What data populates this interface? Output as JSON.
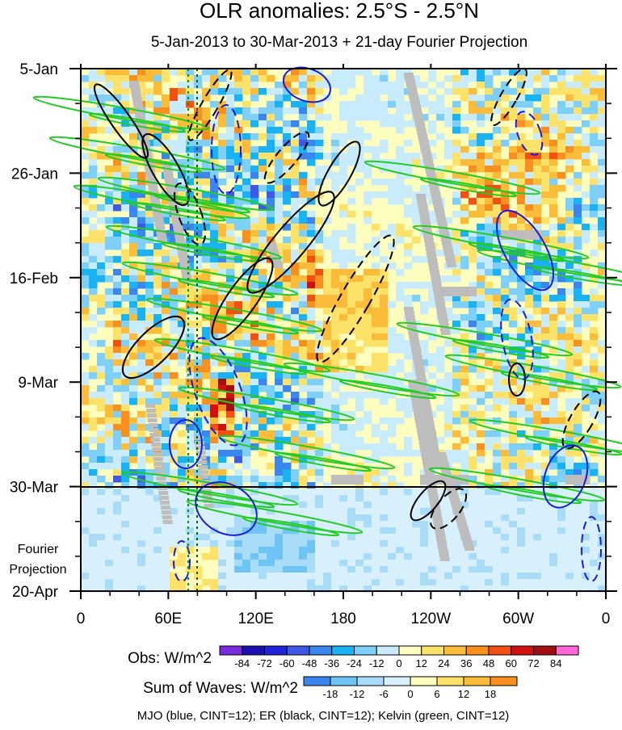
{
  "chart_data": {
    "type": "heatmap",
    "title": "OLR anomalies: 2.5°S - 2.5°N",
    "subtitle": "5-Jan-2013 to 30-Mar-2013 + 21-day Fourier Projection",
    "x_tick_labels": [
      "0",
      "60E",
      "120E",
      "180",
      "120W",
      "60W",
      "0"
    ],
    "x_range": [
      0,
      360
    ],
    "y_tick_labels": [
      "5-Jan",
      "26-Jan",
      "16-Feb",
      "9-Mar",
      "30-Mar",
      "20-Apr"
    ],
    "y_range": [
      "5-Jan-2013",
      "20-Apr-2013"
    ],
    "observation_end": "30-Mar",
    "fourier_label": [
      "Fourier",
      "Projection"
    ],
    "obs_colorbar": {
      "label": "Obs: W/m^2",
      "levels": [
        -84,
        -72,
        -60,
        -48,
        -36,
        -24,
        -12,
        0,
        12,
        24,
        36,
        48,
        60,
        72,
        84
      ],
      "colors": [
        "#7a2be0",
        "#1a0fb0",
        "#1f24d8",
        "#3f59e6",
        "#3b86ee",
        "#19b2f2",
        "#7fd0f8",
        "#c8ecfb",
        "#fefebe",
        "#fde26a",
        "#fbbd39",
        "#f98f1e",
        "#f24f12",
        "#d21010",
        "#a01010",
        "#ff66d6"
      ]
    },
    "waves_colorbar": {
      "label": "Sum of Waves: W/m^2",
      "levels": [
        -18,
        -12,
        -6,
        0,
        6,
        12,
        18
      ],
      "colors": [
        "#3b86ee",
        "#6ec4f5",
        "#a9dcf8",
        "#d7f0fb",
        "#fefebe",
        "#fde26a",
        "#fbbd39",
        "#f98f1e"
      ]
    },
    "contours_legend": "MJO (blue, CINT=12); ER (black, CINT=12); Kelvin (green, CINT=12)",
    "series": [
      {
        "name": "MJO",
        "color": "#1a1adf"
      },
      {
        "name": "ER",
        "color": "#000000"
      },
      {
        "name": "Kelvin",
        "color": "#22cc22"
      }
    ],
    "grid": false
  }
}
